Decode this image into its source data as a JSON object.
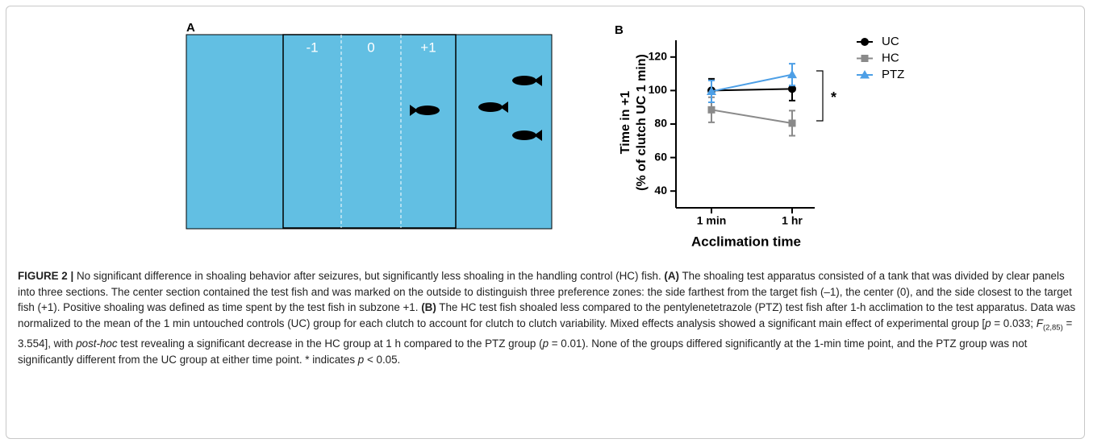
{
  "panel_a": {
    "label": "A",
    "zones": [
      "-1",
      "0",
      "+1"
    ]
  },
  "chart_data": {
    "type": "line",
    "panel_label": "B",
    "x_label": "Acclimation time",
    "y_label": [
      "Time in +1",
      "(% of clutch UC 1 min)"
    ],
    "categories": [
      "1 min",
      "1 hr"
    ],
    "series": [
      {
        "name": "UC",
        "color": "#000000",
        "marker": "circle",
        "values": [
          100,
          101
        ],
        "errors": [
          7,
          7
        ]
      },
      {
        "name": "HC",
        "color": "#8a8a8a",
        "marker": "square",
        "values": [
          88.5,
          80.5
        ],
        "errors": [
          7.5,
          7.5
        ]
      },
      {
        "name": "PTZ",
        "color": "#4d9fe6",
        "marker": "triangle",
        "values": [
          99.5,
          109.5
        ],
        "errors": [
          6.5,
          6.5
        ]
      }
    ],
    "ylim": [
      30,
      130
    ],
    "yticks": [
      40,
      60,
      80,
      100,
      120
    ],
    "annotations": [
      {
        "text": "*"
      }
    ]
  },
  "caption": [
    {
      "style": "bold",
      "text": "FIGURE 2 |"
    },
    {
      "style": "normal",
      "text": " No significant difference in shoaling behavior after seizures, but significantly less shoaling in the handling control (HC) fish. "
    },
    {
      "style": "bold",
      "text": "(A)"
    },
    {
      "style": "normal",
      "text": " The shoaling test apparatus consisted of a tank that was divided by clear panels into three sections. The center section contained the test fish and was marked on the outside to distinguish three preference zones: the side farthest from the target fish (–1), the center (0), and the side closest to the target fish (+1). Positive shoaling was defined as time spent by the test fish in subzone +1. "
    },
    {
      "style": "bold",
      "text": "(B)"
    },
    {
      "style": "normal",
      "text": " The HC test fish shoaled less compared to the pentylenetetrazole (PTZ) test fish after 1-h acclimation to the test apparatus. Data was normalized to the mean of the 1 min untouched controls (UC) group for each clutch to account for clutch to clutch variability. Mixed effects analysis showed a significant main effect of experimental group ["
    },
    {
      "style": "italic",
      "text": "p"
    },
    {
      "style": "normal",
      "text": " = 0.033; "
    },
    {
      "style": "italic",
      "text": "F"
    },
    {
      "style": "sub",
      "text": "(2,85)"
    },
    {
      "style": "normal",
      "text": " = 3.554], with "
    },
    {
      "style": "italic",
      "text": "post-hoc"
    },
    {
      "style": "normal",
      "text": " test revealing a significant decrease in the HC group at 1 h compared to the PTZ group ("
    },
    {
      "style": "italic",
      "text": "p"
    },
    {
      "style": "normal",
      "text": " = 0.01). None of the groups differed significantly at the 1-min time point, and the PTZ group was not significantly different from the UC group at either time point. * indicates "
    },
    {
      "style": "italic",
      "text": "p"
    },
    {
      "style": "normal",
      "text": " < 0.05."
    }
  ]
}
